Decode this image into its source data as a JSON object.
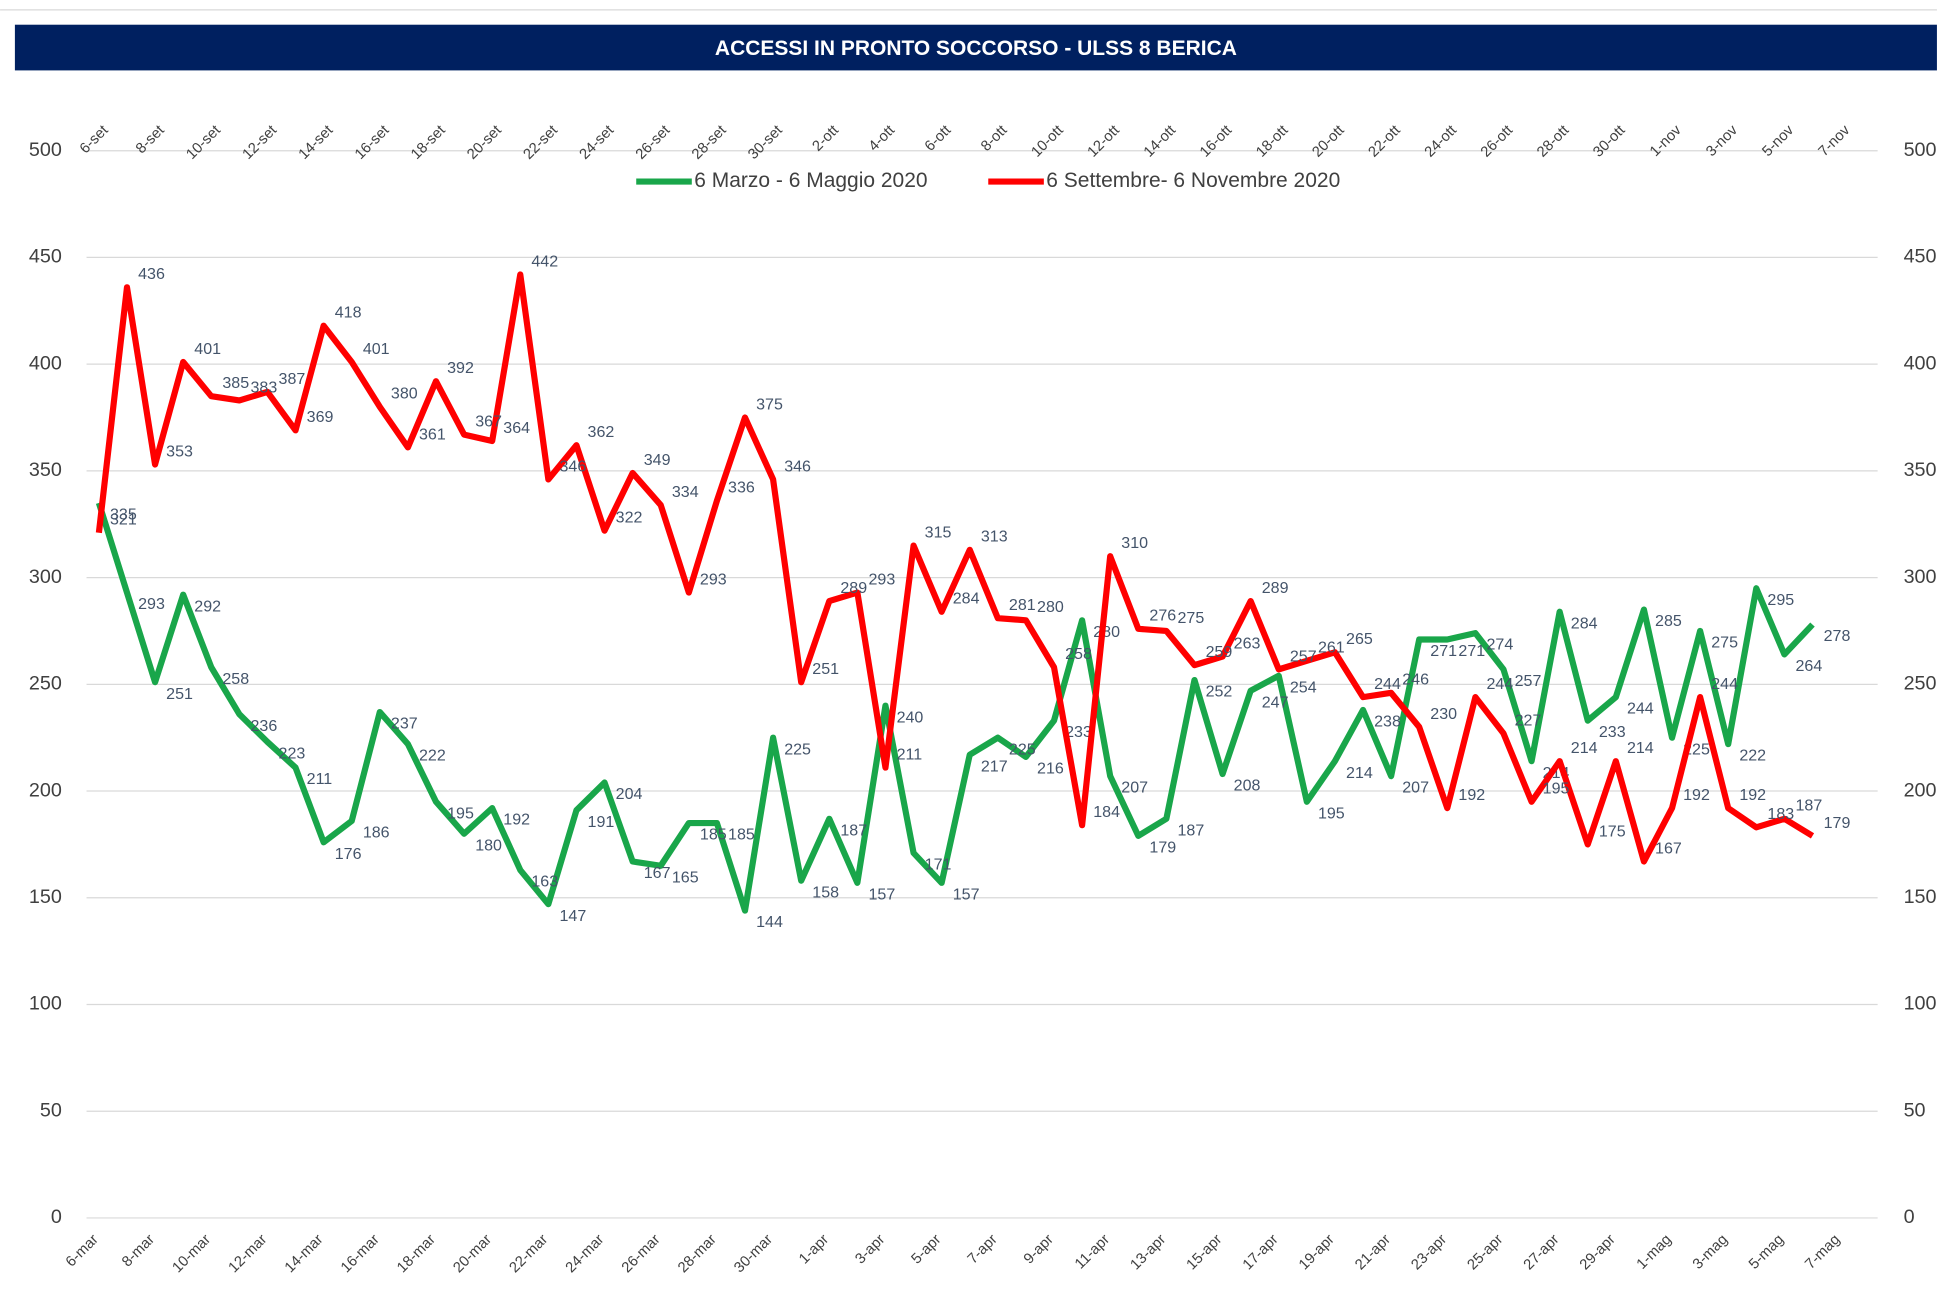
{
  "chart_data": {
    "type": "line",
    "title": "ACCESSI IN PRONTO SOCCORSO - ULSS 8 BERICA",
    "categories": [
      "6-mar",
      null,
      "8-mar",
      null,
      "10-mar",
      null,
      "12-mar",
      null,
      "14-mar",
      null,
      "16-mar",
      null,
      "18-mar",
      null,
      "20-mar",
      null,
      "22-mar",
      null,
      "24-mar",
      null,
      "26-mar",
      null,
      "28-mar",
      null,
      "30-mar",
      null,
      "1-apr",
      null,
      "3-apr",
      null,
      "5-apr",
      null,
      "7-apr",
      null,
      "9-apr",
      null,
      "11-apr",
      null,
      "13-apr",
      null,
      "15-apr",
      null,
      "17-apr",
      null,
      "19-apr",
      null,
      "21-apr",
      null,
      "23-apr",
      null,
      "25-apr",
      null,
      "27-apr",
      null,
      "29-apr",
      null,
      "1-mag",
      null,
      "3-mag",
      null,
      "5-mag",
      null,
      "7-mag"
    ],
    "x2_categories": [
      "6-set",
      null,
      "8-set",
      null,
      "10-set",
      null,
      "12-set",
      null,
      "14-set",
      null,
      "16-set",
      null,
      "18-set",
      null,
      "20-set",
      null,
      "22-set",
      null,
      "24-set",
      null,
      "26-set",
      null,
      "28-set",
      null,
      "30-set",
      null,
      "2-ott",
      null,
      "4-ott",
      null,
      "6-ott",
      null,
      "8-ott",
      null,
      "10-ott",
      null,
      "12-ott",
      null,
      "14-ott",
      null,
      "16-ott",
      null,
      "18-ott",
      null,
      "20-ott",
      null,
      "22-ott",
      null,
      "24-ott",
      null,
      "26-ott",
      null,
      "28-ott",
      null,
      "30-ott",
      null,
      "1-nov",
      null,
      "3-nov",
      null,
      "5-nov",
      null,
      "7-nov"
    ],
    "series": [
      {
        "name": "6 Marzo - 6 Maggio 2020",
        "color": "#19a64a",
        "values": [
          335,
          293,
          251,
          292,
          258,
          236,
          223,
          211,
          176,
          186,
          237,
          222,
          195,
          180,
          192,
          163,
          147,
          191,
          204,
          167,
          165,
          185,
          185,
          144,
          225,
          158,
          187,
          157,
          240,
          171,
          157,
          217,
          225,
          216,
          233,
          280,
          207,
          179,
          187,
          252,
          208,
          247,
          254,
          195,
          214,
          238,
          207,
          271,
          271,
          274,
          257,
          214,
          284,
          233,
          244,
          285,
          225,
          275,
          222,
          295,
          264,
          278,
          null
        ]
      },
      {
        "name": "6 Settembre- 6 Novembre 2020",
        "color": "#ff0000",
        "values": [
          321,
          436,
          353,
          401,
          385,
          383,
          387,
          369,
          418,
          401,
          380,
          361,
          392,
          367,
          364,
          442,
          346,
          362,
          322,
          349,
          334,
          293,
          336,
          375,
          346,
          251,
          289,
          293,
          211,
          315,
          284,
          313,
          281,
          280,
          258,
          184,
          310,
          276,
          275,
          259,
          263,
          289,
          257,
          261,
          265,
          244,
          246,
          230,
          192,
          244,
          227,
          195,
          214,
          175,
          214,
          167,
          192,
          244,
          192,
          183,
          187,
          179,
          null
        ]
      }
    ],
    "ylim": [
      0,
      500
    ],
    "yticks": [
      0,
      50,
      100,
      150,
      200,
      250,
      300,
      350,
      400,
      450,
      500
    ],
    "y2lim": [
      0,
      500
    ],
    "y2ticks": [
      0,
      50,
      100,
      150,
      200,
      250,
      300,
      350,
      400,
      450,
      500
    ],
    "grid": true,
    "legend": "top"
  }
}
